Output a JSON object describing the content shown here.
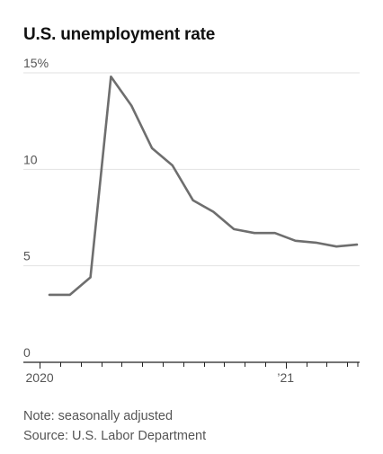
{
  "chart_data": {
    "type": "line",
    "title": "U.S. unemployment rate",
    "xlabel": "",
    "ylabel": "",
    "x": [
      "2020-01",
      "2020-02",
      "2020-03",
      "2020-04",
      "2020-05",
      "2020-06",
      "2020-07",
      "2020-08",
      "2020-09",
      "2020-10",
      "2020-11",
      "2020-12",
      "2021-01",
      "2021-02",
      "2021-03",
      "2021-04"
    ],
    "series": [
      {
        "values": [
          3.5,
          3.5,
          4.4,
          14.8,
          13.3,
          11.1,
          10.2,
          8.4,
          7.8,
          6.9,
          6.7,
          6.7,
          6.3,
          6.2,
          6.0,
          6.1
        ]
      }
    ],
    "ylim": [
      0,
      15
    ],
    "yticks": [
      0,
      5,
      10,
      15
    ],
    "ytick_labels": [
      "0",
      "5",
      "10",
      "15%"
    ],
    "xtick_labels": [
      {
        "x": "2020-01",
        "label": "2020"
      },
      {
        "x": "2021-01",
        "label": "’21"
      }
    ],
    "grid": true,
    "line_color": "#6e6e6e",
    "grid_color": "#e2e2e2"
  },
  "footer": {
    "note": "Note: seasonally adjusted",
    "source": "Source: U.S. Labor Department"
  }
}
